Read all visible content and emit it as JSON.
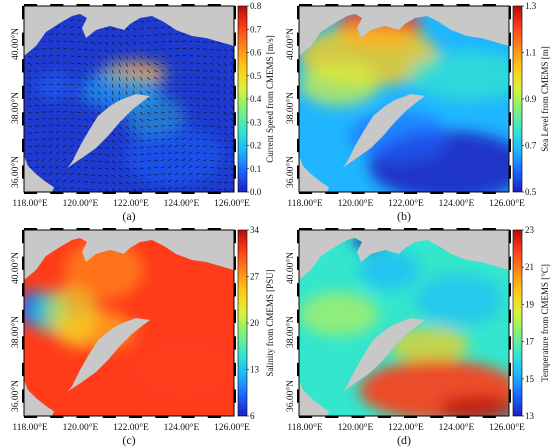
{
  "colors": {
    "land": "#c8c8c8",
    "colormap": [
      "#1f1fbf",
      "#1a66ff",
      "#1fb6ff",
      "#33e6cc",
      "#7ff27a",
      "#d8f23a",
      "#ffcc1a",
      "#ff8a1a",
      "#ff3b1a",
      "#b30f0f"
    ]
  },
  "axes": {
    "x_ticks": [
      "118.00°E",
      "120.00°E",
      "122.00°E",
      "124.00°E",
      "126.00°E"
    ],
    "y_ticks": [
      "40.00°N",
      "38.00°N",
      "36.00°N"
    ]
  },
  "panels": [
    {
      "id": "a",
      "caption": "(a)",
      "colorbar_label": "Current Speed from CMEMS [m/s]",
      "colorbar_ticks": [
        "0.8",
        "0.7",
        "0.6",
        "0.5",
        "0.4",
        "0.3",
        "0.2",
        "0.1",
        "0.0"
      ],
      "field": "current-speed",
      "has_vectors": true
    },
    {
      "id": "b",
      "caption": "(b)",
      "colorbar_label": "Sea Level from CMEMS [m]",
      "colorbar_ticks": [
        "1.3",
        "1.1",
        "0.9",
        "0.7",
        "0.5"
      ],
      "field": "sea-level",
      "has_vectors": false
    },
    {
      "id": "c",
      "caption": "(c)",
      "colorbar_label": "Salinity from CMEMS [PSU]",
      "colorbar_ticks": [
        "34",
        "27",
        "20",
        "13",
        "6"
      ],
      "field": "salinity",
      "has_vectors": false
    },
    {
      "id": "d",
      "caption": "(d)",
      "colorbar_label": "Temperature from CMEMS [°C]",
      "colorbar_ticks": [
        "23",
        "21",
        "19",
        "17",
        "15",
        "13"
      ],
      "field": "temperature",
      "has_vectors": false
    }
  ]
}
